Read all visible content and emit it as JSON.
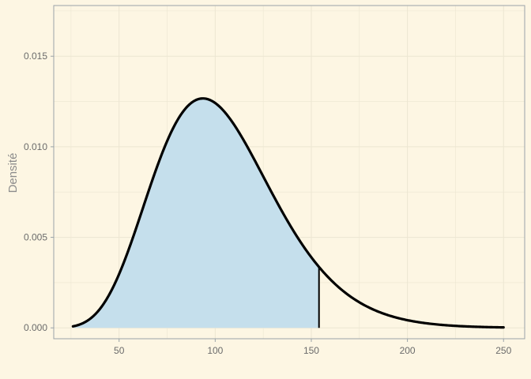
{
  "chart_data": {
    "type": "area",
    "title": "",
    "xlabel": "",
    "ylabel": "Densité",
    "xlim": [
      16,
      261
    ],
    "ylim": [
      -0.0006,
      0.0178
    ],
    "x_ticks": [
      50,
      100,
      150,
      200,
      250
    ],
    "x_tick_labels": [
      "50",
      "100",
      "150",
      "200",
      "250"
    ],
    "y_ticks": [
      0.0,
      0.005,
      0.01,
      0.015
    ],
    "y_tick_labels": [
      "0.000",
      "0.005",
      "0.010",
      "0.015"
    ],
    "grid": true,
    "legend": "none",
    "curve": {
      "distribution": "gamma",
      "shape": 10,
      "scale": 10.4,
      "x_start": 26,
      "x_end": 250
    },
    "shaded_region": {
      "x_start": 26,
      "x_end": 154,
      "description": "area under density up to x = 154"
    },
    "cutoff_line": {
      "x": 154
    },
    "colors": {
      "background": "#fdf6e3",
      "panel_border": "#9aa3a8",
      "grid": "#ece6d2",
      "curve": "#000000",
      "fill": "#c5dfec",
      "text": "#6b6b6b"
    }
  }
}
